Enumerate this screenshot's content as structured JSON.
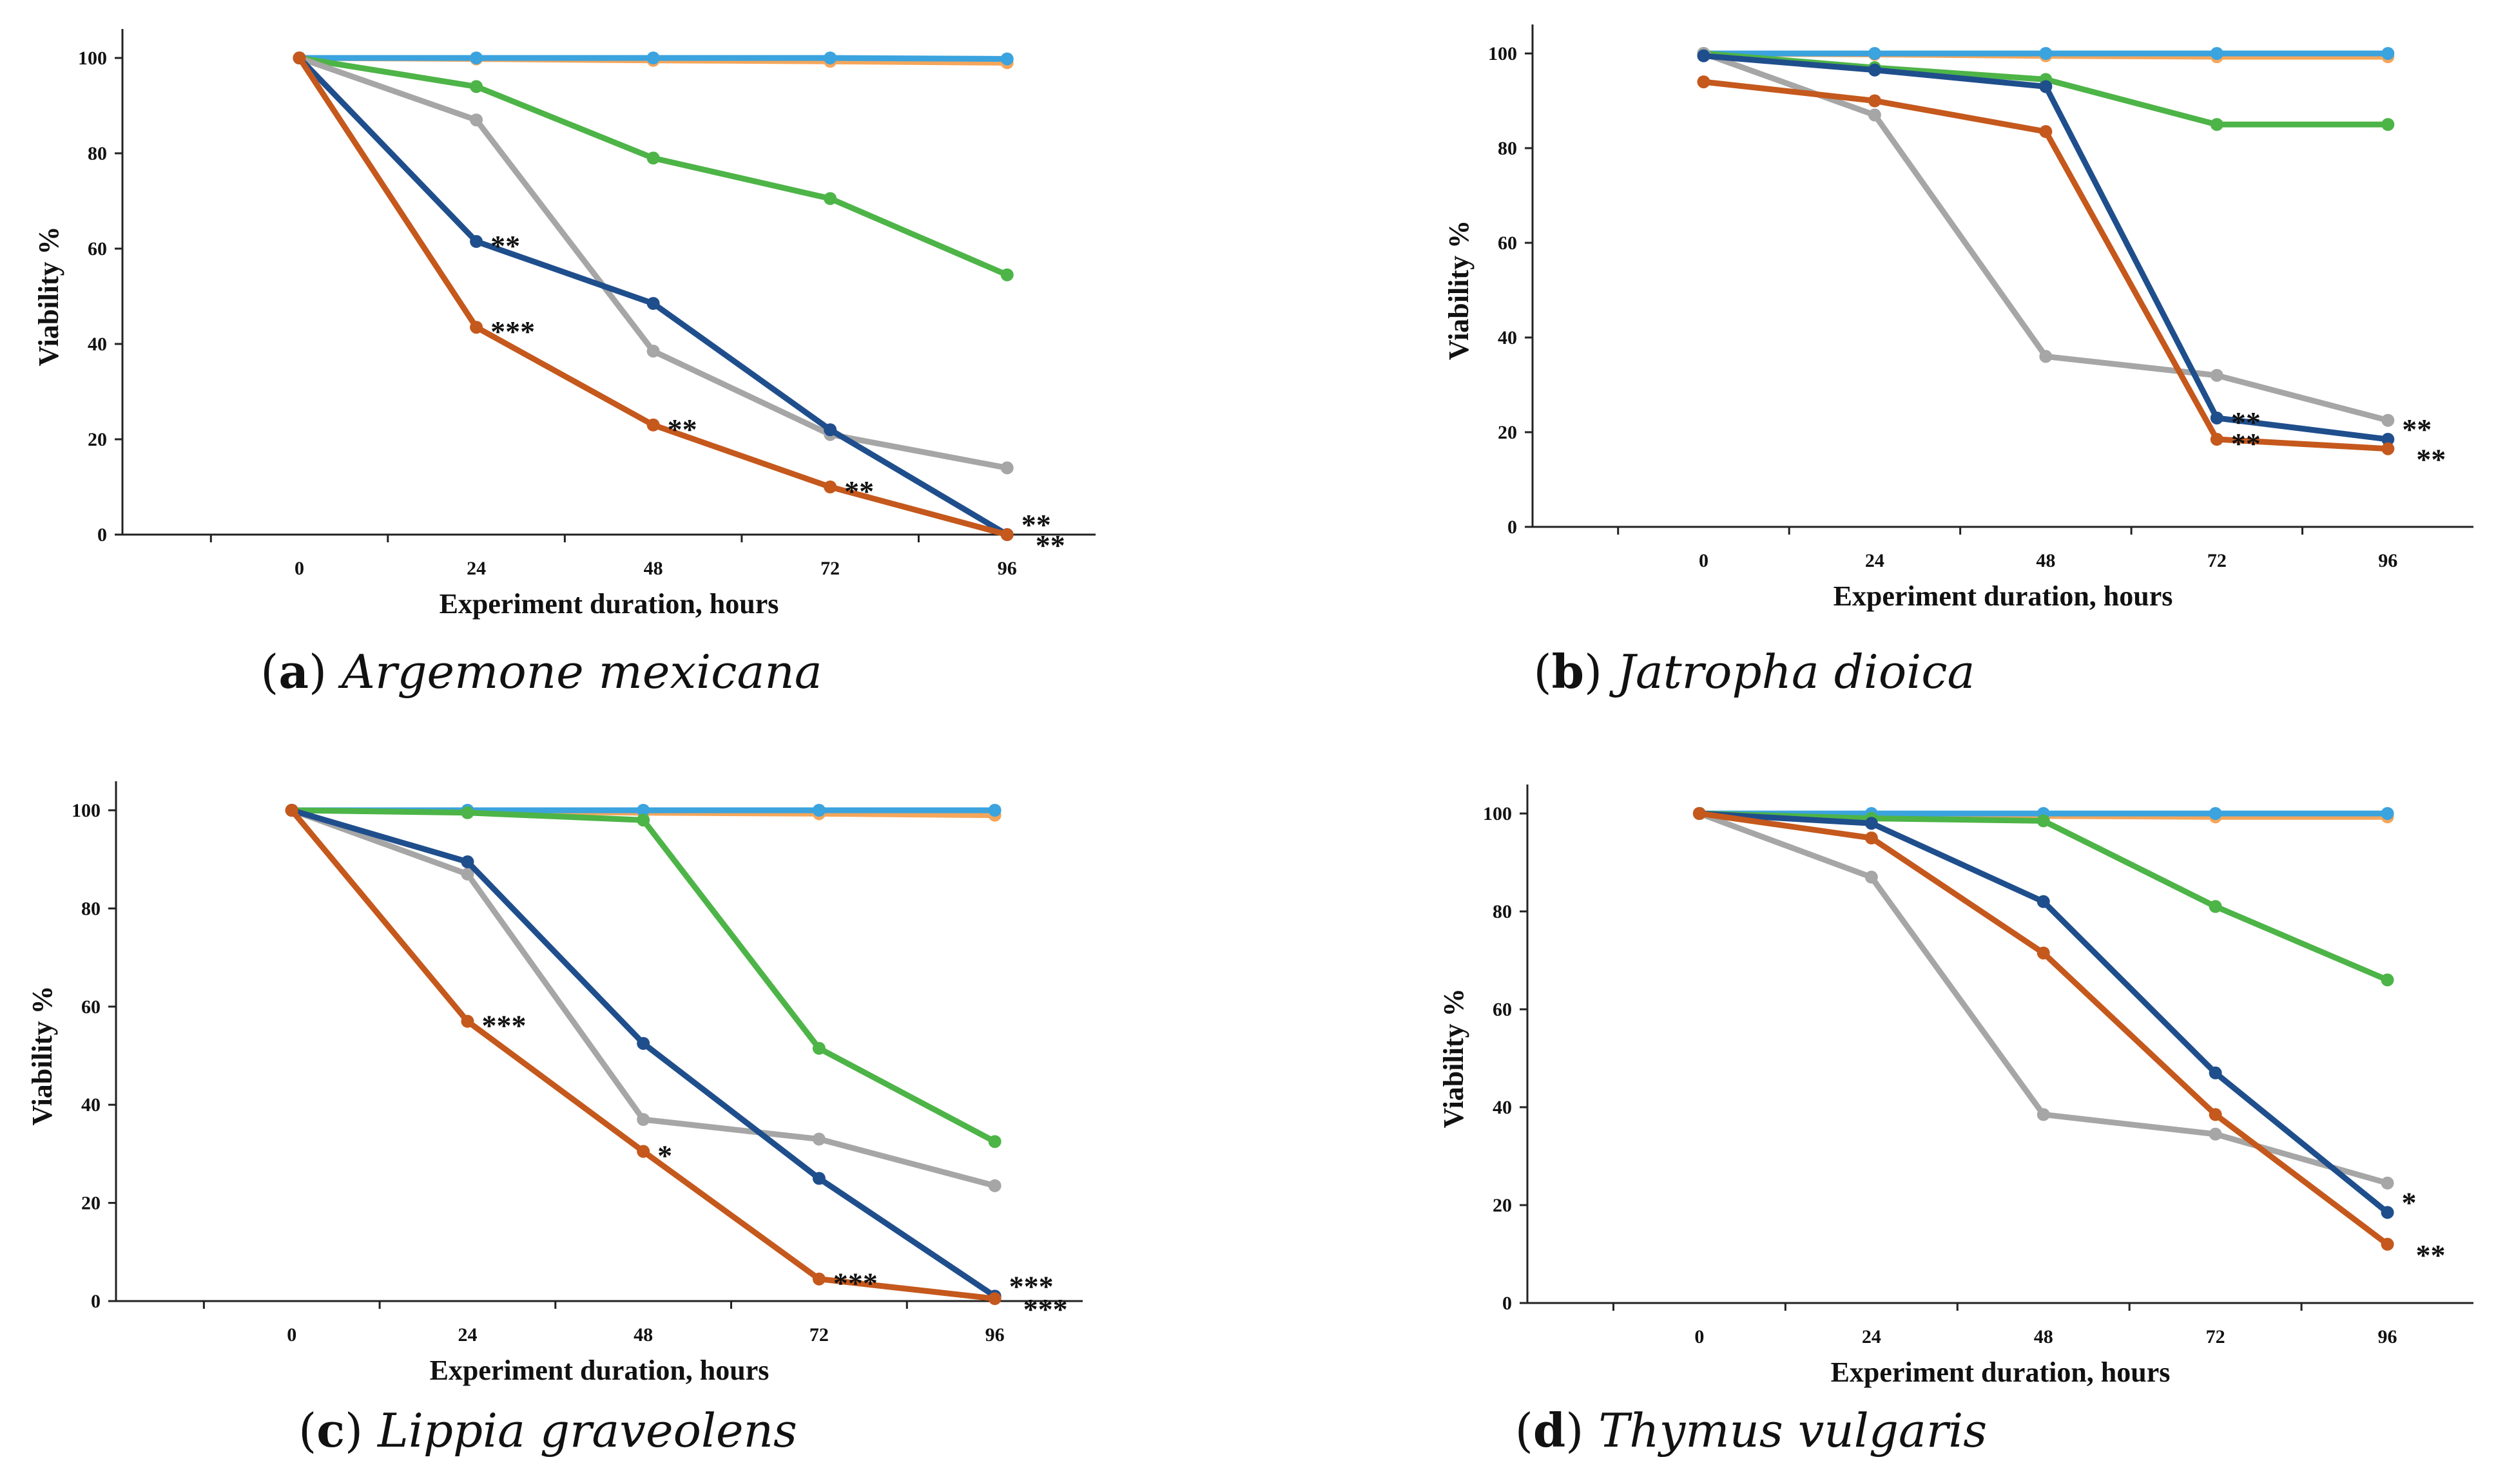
{
  "colors": {
    "dark_blue": "#1f4e8c",
    "orange_red": "#c5581c",
    "gray": "#a6a6a6",
    "green": "#4db447",
    "light_orange": "#f5a65b",
    "light_blue": "#3ba3de"
  },
  "chart_data": [
    {
      "type": "line",
      "caption_letter": "a",
      "caption_species": "Argemone mexicana",
      "xlabel": "Experiment duration, hours",
      "ylabel": "Viability %",
      "x": [
        0,
        24,
        48,
        72,
        96
      ],
      "xlim": [
        -24,
        108
      ],
      "ylim": [
        0,
        100
      ],
      "yticks": [
        0,
        20,
        40,
        60,
        80,
        100
      ],
      "grid": false,
      "series": [
        {
          "color_key": "light_orange",
          "values": [
            100,
            99.8,
            99.5,
            99.3,
            99.0
          ],
          "annotations": [
            "",
            "",
            "",
            "",
            ""
          ]
        },
        {
          "color_key": "light_blue",
          "values": [
            100,
            100,
            100,
            100,
            99.8
          ],
          "annotations": [
            "",
            "",
            "",
            "",
            ""
          ]
        },
        {
          "color_key": "green",
          "values": [
            100,
            94,
            79,
            70.5,
            54.5
          ],
          "annotations": [
            "",
            "",
            "",
            "",
            ""
          ]
        },
        {
          "color_key": "gray",
          "values": [
            100,
            87,
            38.5,
            21,
            14
          ],
          "annotations": [
            "",
            "",
            "",
            "",
            ""
          ]
        },
        {
          "color_key": "dark_blue",
          "values": [
            100,
            61.5,
            48.5,
            22,
            0
          ],
          "annotations": [
            "",
            "**",
            "",
            "",
            "**"
          ]
        },
        {
          "color_key": "orange_red",
          "values": [
            100,
            43.5,
            23,
            10,
            0
          ],
          "annotations": [
            "",
            "***",
            "**",
            "**",
            "**"
          ]
        }
      ]
    },
    {
      "type": "line",
      "caption_letter": "b",
      "caption_species": "Jatropha dioica",
      "xlabel": "Experiment duration, hours",
      "ylabel": "Viability %",
      "x": [
        0,
        24,
        48,
        72,
        96
      ],
      "xlim": [
        -24,
        108
      ],
      "ylim": [
        0,
        100
      ],
      "yticks": [
        0,
        20,
        40,
        60,
        80,
        100
      ],
      "grid": false,
      "series": [
        {
          "color_key": "light_orange",
          "values": [
            100,
            99.8,
            99.5,
            99.3,
            99.3
          ],
          "annotations": [
            "",
            "",
            "",
            "",
            ""
          ]
        },
        {
          "color_key": "light_blue",
          "values": [
            100,
            100,
            100,
            100,
            100
          ],
          "annotations": [
            "",
            "",
            "",
            "",
            ""
          ]
        },
        {
          "color_key": "green",
          "values": [
            100,
            97,
            94.5,
            85,
            85
          ],
          "annotations": [
            "",
            "",
            "",
            "",
            ""
          ]
        },
        {
          "color_key": "gray",
          "values": [
            100,
            87,
            36,
            32,
            22.5
          ],
          "annotations": [
            "",
            "",
            "",
            "",
            ""
          ]
        },
        {
          "color_key": "dark_blue",
          "values": [
            99.5,
            96.5,
            93,
            23,
            18.5
          ],
          "annotations": [
            "",
            "",
            "",
            "**",
            "**"
          ]
        },
        {
          "color_key": "orange_red",
          "values": [
            94,
            90,
            83.5,
            18.5,
            16.5
          ],
          "annotations": [
            "",
            "",
            "",
            "**",
            "**"
          ]
        }
      ]
    },
    {
      "type": "line",
      "caption_letter": "c",
      "caption_species": "Lippia graveolens",
      "xlabel": "Experiment duration, hours",
      "ylabel": "Viability %",
      "x": [
        0,
        24,
        48,
        72,
        96
      ],
      "xlim": [
        -24,
        108
      ],
      "ylim": [
        0,
        100
      ],
      "yticks": [
        0,
        20,
        40,
        60,
        80,
        100
      ],
      "grid": false,
      "series": [
        {
          "color_key": "light_orange",
          "values": [
            100,
            99.8,
            99.5,
            99.3,
            99.0
          ],
          "annotations": [
            "",
            "",
            "",
            "",
            ""
          ]
        },
        {
          "color_key": "light_blue",
          "values": [
            100,
            100,
            100,
            100,
            100
          ],
          "annotations": [
            "",
            "",
            "",
            "",
            ""
          ]
        },
        {
          "color_key": "green",
          "values": [
            100,
            99.5,
            98,
            51.5,
            32.5
          ],
          "annotations": [
            "",
            "",
            "",
            "",
            ""
          ]
        },
        {
          "color_key": "gray",
          "values": [
            100,
            87,
            37,
            33,
            23.5
          ],
          "annotations": [
            "",
            "",
            "",
            "",
            ""
          ]
        },
        {
          "color_key": "dark_blue",
          "values": [
            100,
            89.5,
            52.5,
            25,
            1
          ],
          "annotations": [
            "",
            "",
            "",
            "",
            "***"
          ]
        },
        {
          "color_key": "orange_red",
          "values": [
            100,
            57,
            30.5,
            4.5,
            0.5
          ],
          "annotations": [
            "",
            "***",
            "*",
            "***",
            "***"
          ]
        }
      ]
    },
    {
      "type": "line",
      "caption_letter": "d",
      "caption_species": "Thymus vulgaris",
      "xlabel": "Experiment duration, hours",
      "ylabel": "Viability %",
      "x": [
        0,
        24,
        48,
        72,
        96
      ],
      "xlim": [
        -24,
        108
      ],
      "ylim": [
        0,
        100
      ],
      "yticks": [
        0,
        20,
        40,
        60,
        80,
        100
      ],
      "grid": false,
      "series": [
        {
          "color_key": "light_orange",
          "values": [
            100,
            99.8,
            99.5,
            99.3,
            99.3
          ],
          "annotations": [
            "",
            "",
            "",
            "",
            ""
          ]
        },
        {
          "color_key": "light_blue",
          "values": [
            100,
            100,
            100,
            100,
            100
          ],
          "annotations": [
            "",
            "",
            "",
            "",
            ""
          ]
        },
        {
          "color_key": "green",
          "values": [
            100,
            99,
            98.5,
            81,
            66
          ],
          "annotations": [
            "",
            "",
            "",
            "",
            ""
          ]
        },
        {
          "color_key": "gray",
          "values": [
            100,
            87,
            38.5,
            34.5,
            24.5
          ],
          "annotations": [
            "",
            "",
            "",
            "",
            ""
          ]
        },
        {
          "color_key": "dark_blue",
          "values": [
            100,
            98,
            82,
            47,
            18.5
          ],
          "annotations": [
            "",
            "",
            "",
            "",
            "*"
          ]
        },
        {
          "color_key": "orange_red",
          "values": [
            100,
            95,
            71.5,
            38.5,
            12
          ],
          "annotations": [
            "",
            "",
            "",
            "",
            "**"
          ]
        }
      ]
    }
  ]
}
